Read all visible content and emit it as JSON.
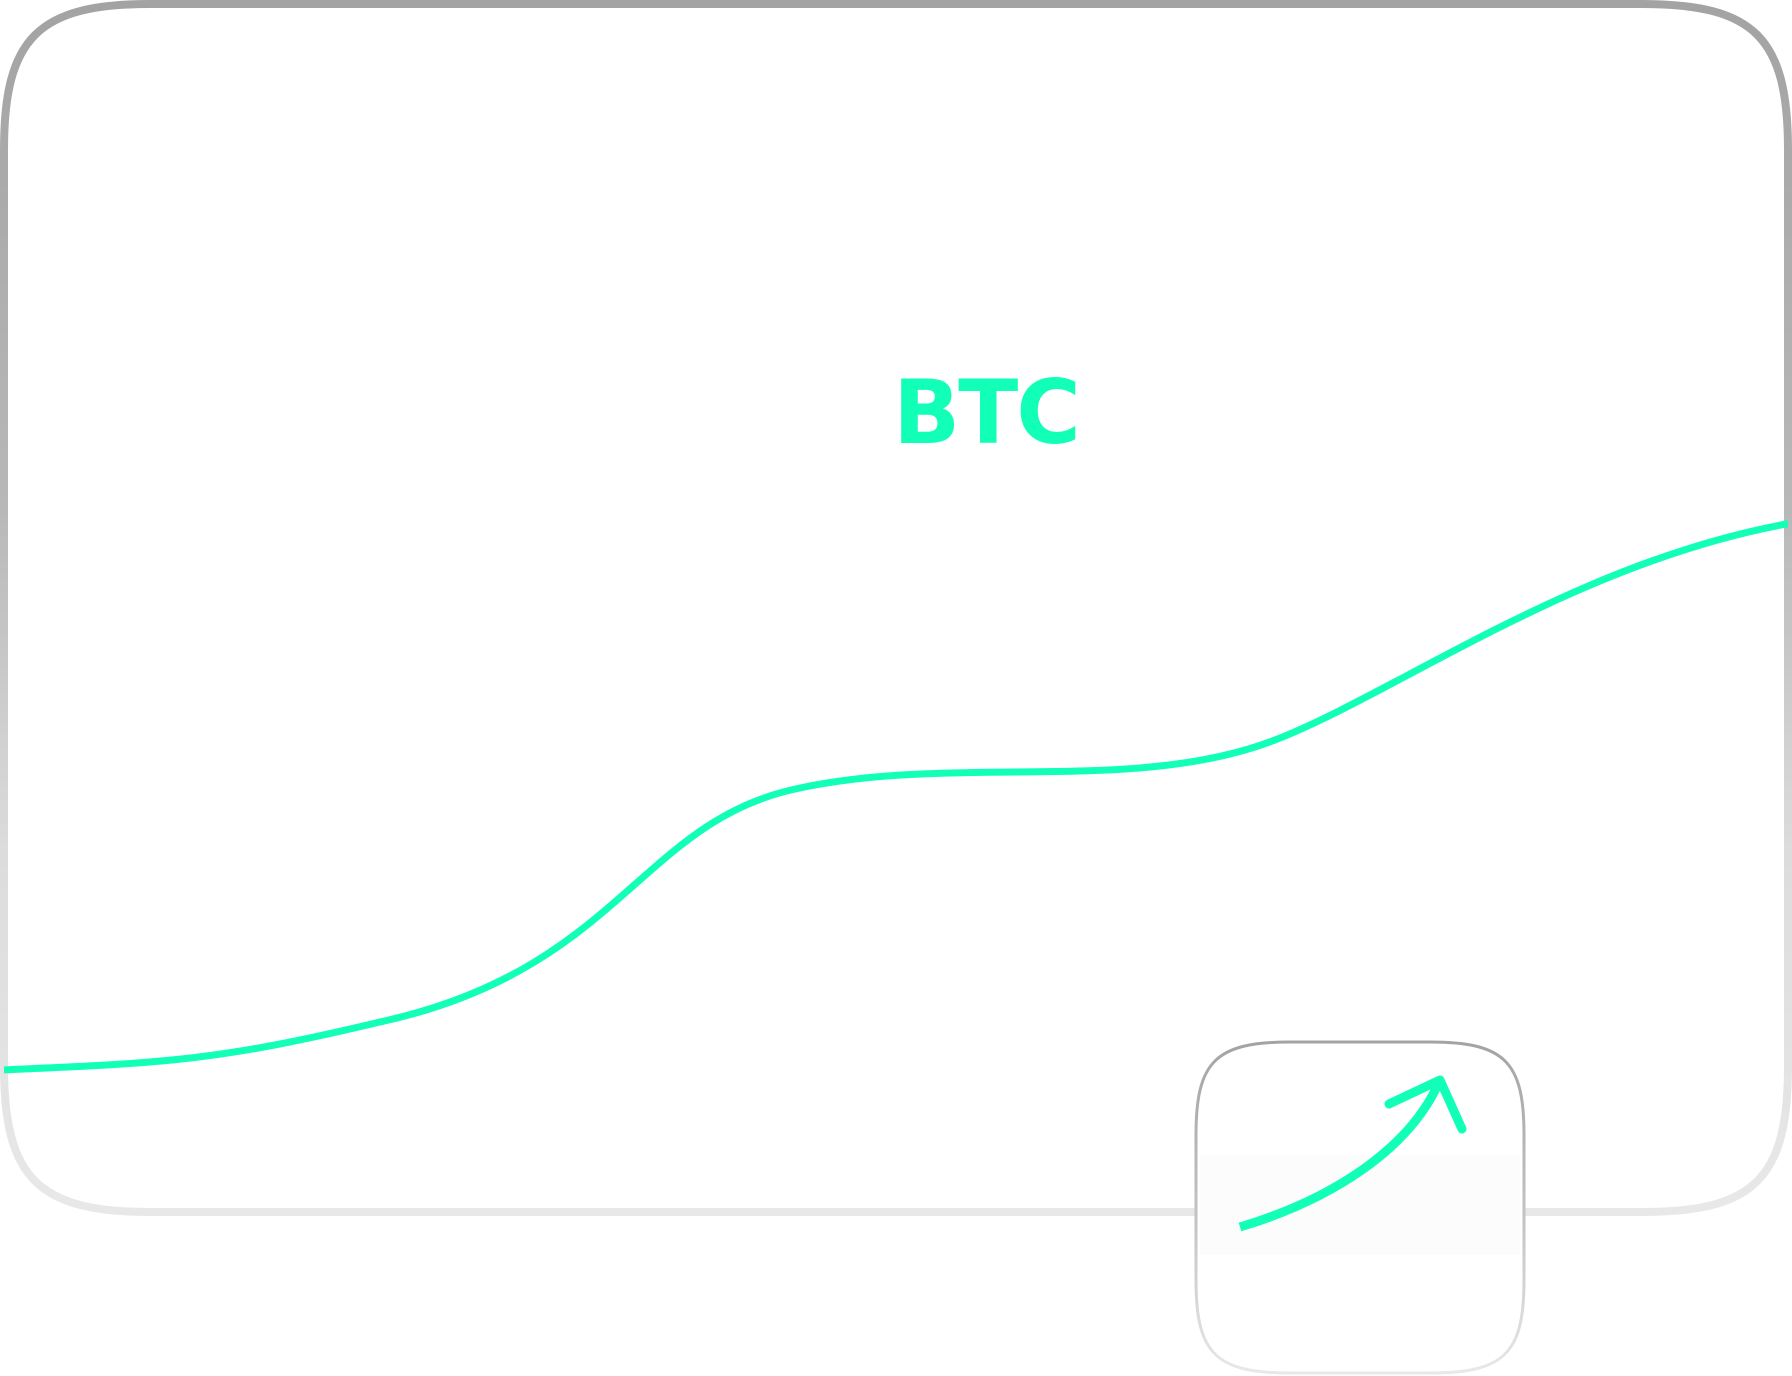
{
  "card": {
    "ticker": "BTC",
    "accent_color": "#12FFB8"
  },
  "icon": {
    "name": "trend-up-arrow-icon"
  },
  "colors": {
    "border_dark": "#A3A3A3",
    "border_light": "#E8E8E8",
    "background": "#FFFFFF"
  }
}
